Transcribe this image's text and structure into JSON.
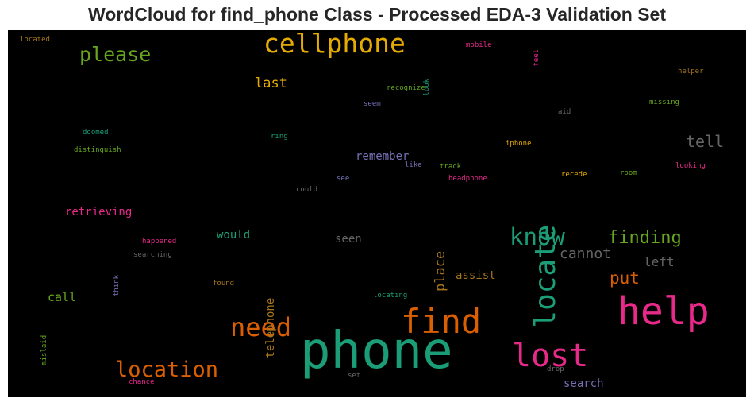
{
  "title": "WordCloud for find_phone Class - Processed EDA-3 Validation Set",
  "chart_data": {
    "type": "wordcloud",
    "background": "#000000",
    "colormap": "Dark2",
    "words": [
      {
        "text": "phone",
        "color": "#1b9e77",
        "size": 64,
        "weight": 1.0
      },
      {
        "text": "help",
        "color": "#e7298a",
        "size": 48,
        "weight": 0.75
      },
      {
        "text": "find",
        "color": "#d95f02",
        "size": 42,
        "weight": 0.66
      },
      {
        "text": "lost",
        "color": "#e7298a",
        "size": 40,
        "weight": 0.62
      },
      {
        "text": "locate",
        "color": "#1b9e77",
        "size": 36,
        "weight": 0.56,
        "vertical": true
      },
      {
        "text": "cellphone",
        "color": "#e6ab02",
        "size": 33,
        "weight": 0.52
      },
      {
        "text": "need",
        "color": "#d95f02",
        "size": 32,
        "weight": 0.5
      },
      {
        "text": "know",
        "color": "#1b9e77",
        "size": 29,
        "weight": 0.45
      },
      {
        "text": "location",
        "color": "#d95f02",
        "size": 27,
        "weight": 0.42
      },
      {
        "text": "please",
        "color": "#66a61e",
        "size": 25,
        "weight": 0.39
      },
      {
        "text": "finding",
        "color": "#66a61e",
        "size": 22,
        "weight": 0.34
      },
      {
        "text": "put",
        "color": "#d95f02",
        "size": 21,
        "weight": 0.33
      },
      {
        "text": "tell",
        "color": "#666666",
        "size": 20,
        "weight": 0.31
      },
      {
        "text": "cannot",
        "color": "#666666",
        "size": 18,
        "weight": 0.28
      },
      {
        "text": "place",
        "color": "#a6761d",
        "size": 17,
        "weight": 0.27,
        "vertical": true
      },
      {
        "text": "last",
        "color": "#e6ab02",
        "size": 17,
        "weight": 0.27
      },
      {
        "text": "left",
        "color": "#666666",
        "size": 16,
        "weight": 0.25
      },
      {
        "text": "remember",
        "color": "#7570b3",
        "size": 14,
        "weight": 0.22
      },
      {
        "text": "call",
        "color": "#66a61e",
        "size": 15,
        "weight": 0.23
      },
      {
        "text": "retrieving",
        "color": "#e7298a",
        "size": 14,
        "weight": 0.22
      },
      {
        "text": "telephone",
        "color": "#a6761d",
        "size": 14,
        "weight": 0.22,
        "vertical": true
      },
      {
        "text": "would",
        "color": "#1b9e77",
        "size": 14,
        "weight": 0.22
      },
      {
        "text": "seen",
        "color": "#666666",
        "size": 14,
        "weight": 0.22
      },
      {
        "text": "assist",
        "color": "#a6761d",
        "size": 14,
        "weight": 0.22
      },
      {
        "text": "search",
        "color": "#7570b3",
        "size": 14,
        "weight": 0.22
      },
      {
        "text": "located",
        "color": "#a6761d",
        "size": 9,
        "weight": 0.14
      },
      {
        "text": "mobile",
        "color": "#e7298a",
        "size": 9,
        "weight": 0.14
      },
      {
        "text": "feel",
        "color": "#e7298a",
        "size": 9,
        "weight": 0.14,
        "vertical": true
      },
      {
        "text": "look",
        "color": "#1b9e77",
        "size": 9,
        "weight": 0.14,
        "vertical": true
      },
      {
        "text": "helper",
        "color": "#a6761d",
        "size": 9,
        "weight": 0.14
      },
      {
        "text": "recognize",
        "color": "#66a61e",
        "size": 9,
        "weight": 0.14
      },
      {
        "text": "seem",
        "color": "#7570b3",
        "size": 9,
        "weight": 0.14
      },
      {
        "text": "missing",
        "color": "#66a61e",
        "size": 9,
        "weight": 0.14
      },
      {
        "text": "aid",
        "color": "#666666",
        "size": 9,
        "weight": 0.14
      },
      {
        "text": "doomed",
        "color": "#1b9e77",
        "size": 9,
        "weight": 0.14
      },
      {
        "text": "ring",
        "color": "#1b9e77",
        "size": 9,
        "weight": 0.14
      },
      {
        "text": "distinguish",
        "color": "#66a61e",
        "size": 9,
        "weight": 0.14
      },
      {
        "text": "iphone",
        "color": "#e6ab02",
        "size": 9,
        "weight": 0.14
      },
      {
        "text": "like",
        "color": "#7570b3",
        "size": 9,
        "weight": 0.14
      },
      {
        "text": "track",
        "color": "#66a61e",
        "size": 9,
        "weight": 0.14
      },
      {
        "text": "looking",
        "color": "#e7298a",
        "size": 9,
        "weight": 0.14
      },
      {
        "text": "room",
        "color": "#66a61e",
        "size": 9,
        "weight": 0.14
      },
      {
        "text": "recede",
        "color": "#e6ab02",
        "size": 9,
        "weight": 0.14
      },
      {
        "text": "see",
        "color": "#7570b3",
        "size": 9,
        "weight": 0.14
      },
      {
        "text": "headphone",
        "color": "#e7298a",
        "size": 9,
        "weight": 0.14
      },
      {
        "text": "could",
        "color": "#666666",
        "size": 9,
        "weight": 0.14
      },
      {
        "text": "happened",
        "color": "#e7298a",
        "size": 9,
        "weight": 0.14
      },
      {
        "text": "searching",
        "color": "#666666",
        "size": 9,
        "weight": 0.14
      },
      {
        "text": "think",
        "color": "#7570b3",
        "size": 9,
        "weight": 0.14,
        "vertical": true
      },
      {
        "text": "found",
        "color": "#a6761d",
        "size": 9,
        "weight": 0.14
      },
      {
        "text": "locating",
        "color": "#1b9e77",
        "size": 9,
        "weight": 0.14
      },
      {
        "text": "mislaid",
        "color": "#66a61e",
        "size": 9,
        "weight": 0.14,
        "vertical": true
      },
      {
        "text": "chance",
        "color": "#e7298a",
        "size": 9,
        "weight": 0.14
      },
      {
        "text": "set",
        "color": "#666666",
        "size": 9,
        "weight": 0.14
      },
      {
        "text": "drop",
        "color": "#666666",
        "size": 9,
        "weight": 0.14
      }
    ]
  }
}
